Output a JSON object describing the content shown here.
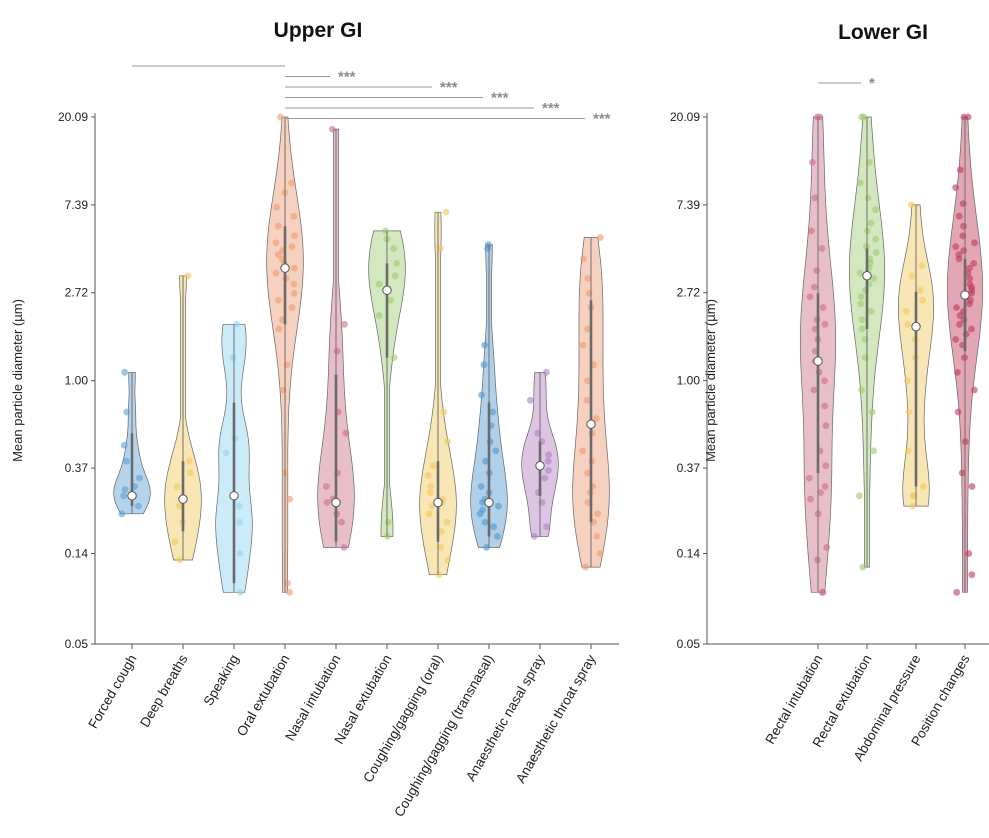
{
  "chart_data": [
    {
      "type": "violin",
      "title": "Upper GI",
      "ylabel": "Mean particle diameter (µm)",
      "y_scale": "log",
      "y_ticks": [
        "0.05",
        "0.14",
        "0.37",
        "1.00",
        "2.72",
        "7.39",
        "20.09"
      ],
      "ylim": [
        0.05,
        20.09
      ],
      "categories": [
        "Forced cough",
        "Deep breaths",
        "Speaking",
        "Oral extubation",
        "Nasal intubation",
        "Nasal extubation",
        "Coughing/gagging (oral)",
        "Coughing/gagging (transnasal)",
        "Anaesthetic nasal spray",
        "Anaesthetic throat spray"
      ],
      "series_colors": [
        "#5a9fd4",
        "#f2c85b",
        "#8fd3f2",
        "#ee9a70",
        "#cc6f86",
        "#9dcc6e",
        "#f2c85b",
        "#4f97cf",
        "#b07ec2",
        "#ee9a70"
      ],
      "median": [
        0.27,
        0.26,
        0.27,
        3.6,
        0.25,
        2.8,
        0.25,
        0.25,
        0.38,
        0.61
      ],
      "q1": [
        0.24,
        0.18,
        0.1,
        1.9,
        0.16,
        1.3,
        0.16,
        0.17,
        0.27,
        0.2
      ],
      "q3": [
        0.55,
        0.4,
        0.78,
        5.8,
        1.07,
        3.8,
        0.4,
        0.78,
        0.5,
        2.5
      ],
      "min": [
        0.22,
        0.13,
        0.09,
        0.09,
        0.15,
        0.17,
        0.11,
        0.15,
        0.17,
        0.12
      ],
      "max": [
        1.1,
        3.3,
        1.9,
        20.09,
        17.5,
        5.5,
        6.8,
        4.7,
        1.1,
        5.1
      ],
      "points": [
        [
          0.22,
          0.24,
          0.27,
          0.27,
          0.29,
          0.3,
          0.33,
          0.4,
          0.48,
          0.7,
          1.1
        ],
        [
          0.13,
          0.16,
          0.2,
          0.24,
          0.26,
          0.3,
          0.35,
          0.4,
          3.3
        ],
        [
          0.09,
          0.14,
          0.2,
          0.24,
          0.44,
          0.52,
          1.3,
          1.9
        ],
        [
          0.09,
          0.1,
          0.26,
          0.35,
          0.9,
          1.2,
          1.8,
          2.0,
          2.3,
          2.5,
          2.7,
          3.0,
          3.2,
          3.4,
          3.6,
          3.8,
          4.0,
          4.2,
          4.4,
          4.6,
          4.8,
          5.2,
          5.8,
          6.5,
          7.2,
          8.5,
          9.5,
          20.09
        ],
        [
          0.15,
          0.2,
          0.22,
          0.25,
          0.26,
          0.3,
          0.35,
          0.55,
          0.7,
          1.4,
          1.9,
          17.5
        ],
        [
          0.17,
          0.2,
          1.3,
          2.1,
          2.5,
          3.0,
          3.3,
          3.8,
          4.5,
          5.0,
          5.5
        ],
        [
          0.11,
          0.13,
          0.15,
          0.18,
          0.2,
          0.22,
          0.24,
          0.25,
          0.26,
          0.28,
          0.3,
          0.34,
          0.38,
          0.5,
          0.7,
          4.5,
          6.8
        ],
        [
          0.15,
          0.17,
          0.19,
          0.2,
          0.22,
          0.23,
          0.24,
          0.25,
          0.26,
          0.28,
          0.3,
          0.35,
          0.4,
          0.45,
          0.5,
          0.6,
          0.7,
          0.85,
          1.2,
          1.5,
          4.5,
          4.7
        ],
        [
          0.17,
          0.19,
          0.25,
          0.28,
          0.33,
          0.36,
          0.4,
          0.43,
          0.5,
          0.55,
          0.8,
          1.1
        ],
        [
          0.12,
          0.14,
          0.17,
          0.2,
          0.22,
          0.25,
          0.28,
          0.3,
          0.35,
          0.4,
          0.45,
          0.55,
          0.65,
          0.8,
          1.0,
          1.2,
          1.5,
          1.8,
          2.3,
          2.7,
          3.2,
          4.0,
          5.1
        ]
      ],
      "significance": [
        {
          "label": "",
          "from": 0,
          "to": 3
        },
        {
          "label": "***",
          "from": 3,
          "to": 4
        },
        {
          "label": "***",
          "from": 3,
          "to": 6
        },
        {
          "label": "***",
          "from": 3,
          "to": 7
        },
        {
          "label": "***",
          "from": 3,
          "to": 8
        },
        {
          "label": "***",
          "from": 3,
          "to": 9
        }
      ]
    },
    {
      "type": "violin",
      "title": "Lower GI",
      "ylabel": "Mean particle diameter (µm)",
      "y_scale": "log",
      "y_ticks": [
        "0.05",
        "0.14",
        "0.37",
        "1.00",
        "2.72",
        "7.39",
        "20.09"
      ],
      "ylim": [
        0.05,
        20.09
      ],
      "categories": [
        "Rectal intubation",
        "Rectal extubation",
        "Abdominal pressure",
        "Position changes"
      ],
      "series_colors": [
        "#cc6f86",
        "#9dcc6e",
        "#f2c85b",
        "#c03a5a"
      ],
      "median": [
        1.25,
        3.3,
        1.85,
        2.65
      ],
      "q1": [
        0.35,
        1.8,
        0.3,
        1.4
      ],
      "q3": [
        2.7,
        4.5,
        2.75,
        4.0
      ],
      "min": [
        0.09,
        0.12,
        0.24,
        0.09
      ],
      "max": [
        20.09,
        20.09,
        7.39,
        20.09
      ],
      "points": [
        [
          0.09,
          0.09,
          0.13,
          0.15,
          0.22,
          0.26,
          0.28,
          0.3,
          0.33,
          0.38,
          0.45,
          0.6,
          0.75,
          0.9,
          1.0,
          1.1,
          1.25,
          1.4,
          1.6,
          1.8,
          1.9,
          2.0,
          2.3,
          2.6,
          2.9,
          3.5,
          4.5,
          5.5,
          8.0,
          12.0,
          20.09,
          20.09
        ],
        [
          0.12,
          0.27,
          0.45,
          0.7,
          0.9,
          1.3,
          1.6,
          1.8,
          2.0,
          2.2,
          2.4,
          2.6,
          2.8,
          3.0,
          3.2,
          3.4,
          3.6,
          3.8,
          4.0,
          4.3,
          4.6,
          5.0,
          5.5,
          6.0,
          7.0,
          8.0,
          9.5,
          12.0,
          20.09,
          20.09
        ],
        [
          0.24,
          0.27,
          0.27,
          0.3,
          0.45,
          0.7,
          1.0,
          1.3,
          1.6,
          1.9,
          2.2,
          2.5,
          2.8,
          3.3,
          3.7,
          7.39
        ],
        [
          0.09,
          0.11,
          0.14,
          0.3,
          0.35,
          0.5,
          0.7,
          0.9,
          1.1,
          1.3,
          1.5,
          1.6,
          1.7,
          1.8,
          1.9,
          2.0,
          2.1,
          2.2,
          2.3,
          2.4,
          2.5,
          2.6,
          2.7,
          2.8,
          2.9,
          3.0,
          3.2,
          3.4,
          3.6,
          3.8,
          4.0,
          4.2,
          4.4,
          4.6,
          4.8,
          5.2,
          5.8,
          6.5,
          7.5,
          9.0,
          11.0,
          20.09,
          20.09
        ]
      ],
      "significance": [
        {
          "label": "*",
          "from": 0,
          "to": 1
        }
      ]
    }
  ]
}
